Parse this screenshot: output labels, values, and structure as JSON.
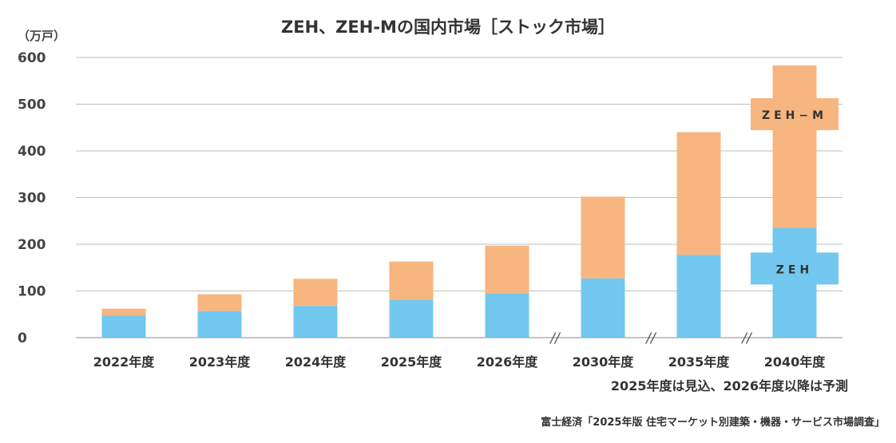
{
  "chart_data": {
    "type": "bar",
    "stacked": true,
    "title": "ZEH、ZEH-Mの国内市場［ストック市場］",
    "unit_label": "（万戸）",
    "categories": [
      "2022年度",
      "2023年度",
      "2024年度",
      "2025年度",
      "2026年度",
      "2030年度",
      "2035年度",
      "2040年度"
    ],
    "series": [
      {
        "name": "ZEH",
        "color": "#72c8ee",
        "values": [
          47,
          57,
          68,
          81,
          94,
          127,
          177,
          235
        ]
      },
      {
        "name": "ZEH−M",
        "color": "#f7b580",
        "values": [
          15,
          36,
          58,
          82,
          103,
          175,
          263,
          348
        ]
      }
    ],
    "ylim": [
      0,
      600
    ],
    "yticks": [
      0,
      100,
      200,
      300,
      400,
      500,
      600
    ],
    "grid": true,
    "axis_breaks_before": [
      "2030年度",
      "2035年度",
      "2040年度"
    ],
    "axis_break_symbol": "//"
  },
  "note": "2025年度は見込、2026年度以降は予測",
  "source": "富士経済「2025年版 住宅マーケット別建築・機器・サービス市場調査」"
}
